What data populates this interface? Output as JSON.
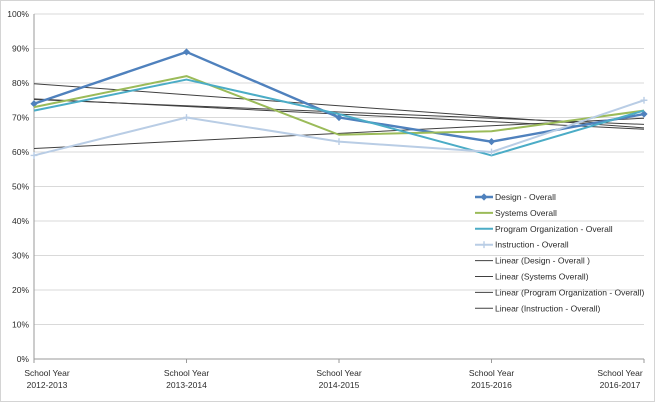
{
  "chart_data": {
    "type": "line",
    "title": "",
    "xlabel": "",
    "ylabel": "",
    "ylim": [
      0,
      100
    ],
    "ytick_step": 10,
    "y_ticks": [
      "0%",
      "10%",
      "20%",
      "30%",
      "40%",
      "50%",
      "60%",
      "70%",
      "80%",
      "90%",
      "100%"
    ],
    "grid": true,
    "legend_position": "middle-right",
    "categories": [
      [
        "School Year",
        "2012-2013"
      ],
      [
        "School Year",
        "2013-2014"
      ],
      [
        "School Year",
        "2014-2015"
      ],
      [
        "School Year",
        "2015-2016"
      ],
      [
        "School Year",
        "2016-2017"
      ]
    ],
    "series": [
      {
        "name": "Design - Overall",
        "color": "#4f81bd",
        "marker": "diamond",
        "width": 2.4,
        "values": [
          74,
          89,
          70,
          63,
          71
        ]
      },
      {
        "name": "Systems Overall",
        "color": "#9bbb59",
        "marker": "none",
        "width": 2.0,
        "values": [
          73,
          82,
          65,
          66,
          72
        ]
      },
      {
        "name": "Program Organization - Overall",
        "color": "#4bacc6",
        "marker": "none",
        "width": 2.0,
        "values": [
          72,
          81,
          71,
          59,
          72
        ]
      },
      {
        "name": "Instruction - Overall",
        "color": "#b9cde5",
        "marker": "plus",
        "width": 2.0,
        "values": [
          59,
          70,
          63,
          60,
          75
        ]
      }
    ],
    "trendlines": [
      {
        "name": "Linear (Design - Overall )",
        "series": 0
      },
      {
        "name": "Linear (Systems Overall)",
        "series": 1
      },
      {
        "name": "Linear (Program Organization - Overall)",
        "series": 2
      },
      {
        "name": "Linear (Instruction - Overall)",
        "series": 3
      }
    ],
    "colors": {
      "trendline": "#404040",
      "gridline": "#d9d9d9",
      "axis": "#9a9a9a",
      "text": "#2b2b2b"
    }
  }
}
